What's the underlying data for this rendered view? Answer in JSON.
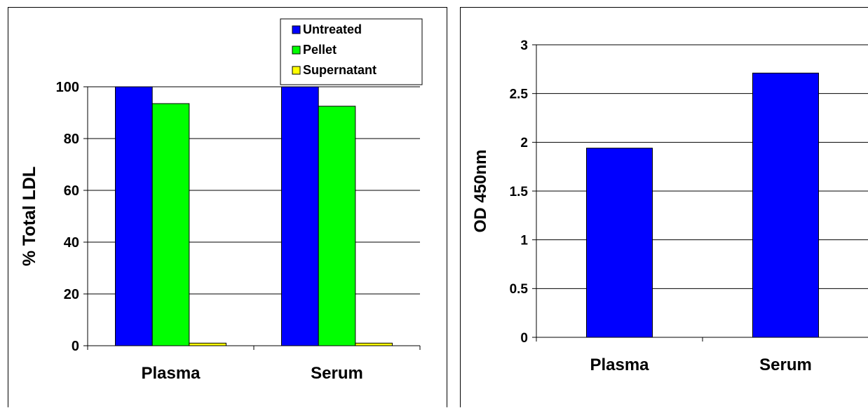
{
  "charts": [
    {
      "type": "bar",
      "categories": [
        "Plasma",
        "Serum"
      ],
      "series": [
        {
          "name": "Untreated",
          "color": "#0000ff",
          "values": [
            100,
            100
          ]
        },
        {
          "name": "Pellet",
          "color": "#00ff00",
          "values": [
            93.5,
            92.5
          ]
        },
        {
          "name": "Supernatant",
          "color": "#ffff00",
          "values": [
            1,
            1
          ]
        }
      ],
      "ylabel": "% Total LDL",
      "ylim": [
        0,
        100
      ],
      "yticks": [
        0,
        20,
        40,
        60,
        80,
        100
      ],
      "grid": true,
      "legend": "top-right"
    },
    {
      "type": "bar",
      "categories": [
        "Plasma",
        "Serum"
      ],
      "series": [
        {
          "name": "",
          "color": "#0000ff",
          "values": [
            1.94,
            2.71
          ]
        }
      ],
      "ylabel": "OD 450nm",
      "ylim": [
        0,
        3
      ],
      "yticks": [
        0,
        0.5,
        1,
        1.5,
        2,
        2.5,
        3
      ],
      "grid": true,
      "legend": "none"
    }
  ],
  "chart_data": [
    {
      "type": "bar",
      "categories": [
        "Plasma",
        "Serum"
      ],
      "series": [
        {
          "name": "Untreated",
          "values": [
            100,
            100
          ]
        },
        {
          "name": "Pellet",
          "values": [
            93.5,
            92.5
          ]
        },
        {
          "name": "Supernatant",
          "values": [
            1,
            1
          ]
        }
      ],
      "ylabel": "% Total LDL",
      "ylim": [
        0,
        100
      ]
    },
    {
      "type": "bar",
      "categories": [
        "Plasma",
        "Serum"
      ],
      "values": [
        1.94,
        2.71
      ],
      "ylabel": "OD 450nm",
      "ylim": [
        0,
        3
      ]
    }
  ]
}
